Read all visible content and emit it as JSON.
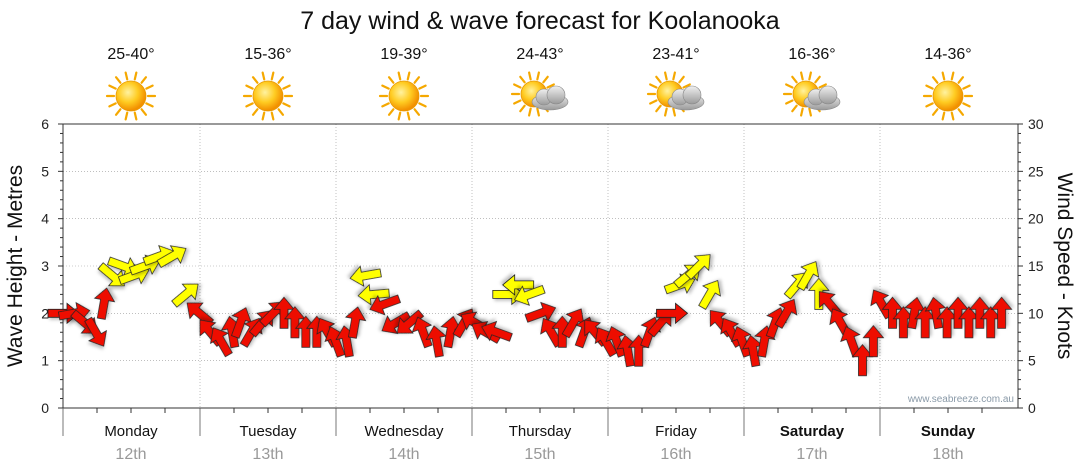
{
  "chart_data": {
    "type": "scatter",
    "title": "7 day wind & wave forecast for Koolanooka",
    "y_left_label": "Wave Height - Metres",
    "y_right_label": "Wind Speed - Knots",
    "y_left_range": [
      0,
      6
    ],
    "y_right_range": [
      0,
      30
    ],
    "y_left_ticks": [
      "0",
      "1",
      "2",
      "3",
      "4",
      "5",
      "6"
    ],
    "y_right_ticks": [
      "0",
      "5",
      "10",
      "15",
      "20",
      "25",
      "30"
    ],
    "credit": "www.seabreeze.com.au",
    "colors": {
      "strong_wind": "#ee1100",
      "light_wind": "#ffff00",
      "arrow_outline": "#222222",
      "grid": "#999999"
    },
    "days": [
      {
        "name": "Monday",
        "date": "12th",
        "temp": "25-40°",
        "icon": "sun-icon",
        "bold": false
      },
      {
        "name": "Tuesday",
        "date": "13th",
        "temp": "15-36°",
        "icon": "sun-icon",
        "bold": false
      },
      {
        "name": "Wednesday",
        "date": "14th",
        "temp": "19-39°",
        "icon": "sun-icon",
        "bold": false
      },
      {
        "name": "Thursday",
        "date": "15th",
        "temp": "24-43°",
        "icon": "sun-cloud-icon",
        "bold": false
      },
      {
        "name": "Friday",
        "date": "16th",
        "temp": "23-41°",
        "icon": "sun-cloud-icon",
        "bold": false
      },
      {
        "name": "Saturday",
        "date": "17th",
        "temp": "16-36°",
        "icon": "sun-cloud-icon",
        "bold": true
      },
      {
        "name": "Sunday",
        "date": "18th",
        "temp": "14-36°",
        "icon": "sun-icon",
        "bold": true
      }
    ],
    "series": [
      {
        "name": "Wind",
        "points": [
          {
            "t": 0.0,
            "knots": 10,
            "dir": 0
          },
          {
            "t": 0.08,
            "knots": 10,
            "dir": -10
          },
          {
            "t": 0.16,
            "knots": 9,
            "dir": 40
          },
          {
            "t": 0.24,
            "knots": 8,
            "dir": 60
          },
          {
            "t": 0.3,
            "knots": 11,
            "dir": -80
          },
          {
            "t": 0.36,
            "knots": 14,
            "dir": 40
          },
          {
            "t": 0.44,
            "knots": 15,
            "dir": 20
          },
          {
            "t": 0.52,
            "knots": 14,
            "dir": -20
          },
          {
            "t": 0.6,
            "knots": 15,
            "dir": -20
          },
          {
            "t": 0.7,
            "knots": 16,
            "dir": -20
          },
          {
            "t": 0.8,
            "knots": 16,
            "dir": -30
          },
          {
            "t": 0.9,
            "knots": 12,
            "dir": -40
          },
          {
            "t": 1.0,
            "knots": 10,
            "dir": -140
          },
          {
            "t": 1.08,
            "knots": 8,
            "dir": -130
          },
          {
            "t": 1.16,
            "knots": 7,
            "dir": -120
          },
          {
            "t": 1.24,
            "knots": 8,
            "dir": -100
          },
          {
            "t": 1.3,
            "knots": 9,
            "dir": -70
          },
          {
            "t": 1.38,
            "knots": 8,
            "dir": -60
          },
          {
            "t": 1.46,
            "knots": 9,
            "dir": -50
          },
          {
            "t": 1.54,
            "knots": 10,
            "dir": -45
          },
          {
            "t": 1.62,
            "knots": 10,
            "dir": -90
          },
          {
            "t": 1.7,
            "knots": 9,
            "dir": -90
          },
          {
            "t": 1.78,
            "knots": 8,
            "dir": -90
          },
          {
            "t": 1.86,
            "knots": 8,
            "dir": -90
          },
          {
            "t": 1.94,
            "knots": 8,
            "dir": -120
          },
          {
            "t": 2.0,
            "knots": 7,
            "dir": -110
          },
          {
            "t": 2.08,
            "knots": 7,
            "dir": -100
          },
          {
            "t": 2.14,
            "knots": 9,
            "dir": -80
          },
          {
            "t": 2.22,
            "knots": 14,
            "dir": 170
          },
          {
            "t": 2.28,
            "knots": 12,
            "dir": 175
          },
          {
            "t": 2.36,
            "knots": 11,
            "dir": 160
          },
          {
            "t": 2.44,
            "knots": 9,
            "dir": 150
          },
          {
            "t": 2.54,
            "knots": 9,
            "dir": 140
          },
          {
            "t": 2.64,
            "knots": 8,
            "dir": -110
          },
          {
            "t": 2.74,
            "knots": 7,
            "dir": -100
          },
          {
            "t": 2.84,
            "knots": 8,
            "dir": -80
          },
          {
            "t": 2.94,
            "knots": 9,
            "dir": -60
          },
          {
            "t": 3.02,
            "knots": 9,
            "dir": -150
          },
          {
            "t": 3.1,
            "knots": 8,
            "dir": -150
          },
          {
            "t": 3.18,
            "knots": 8,
            "dir": -160
          },
          {
            "t": 3.26,
            "knots": 12,
            "dir": 0
          },
          {
            "t": 3.34,
            "knots": 13,
            "dir": 180
          },
          {
            "t": 3.42,
            "knots": 12,
            "dir": 160
          },
          {
            "t": 3.5,
            "knots": 10,
            "dir": -20
          },
          {
            "t": 3.58,
            "knots": 8,
            "dir": -120
          },
          {
            "t": 3.66,
            "knots": 8,
            "dir": -90
          },
          {
            "t": 3.74,
            "knots": 9,
            "dir": -60
          },
          {
            "t": 3.82,
            "knots": 8,
            "dir": -70
          },
          {
            "t": 3.9,
            "knots": 8,
            "dir": -130
          },
          {
            "t": 3.98,
            "knots": 7,
            "dir": -120
          },
          {
            "t": 4.06,
            "knots": 7,
            "dir": -110
          },
          {
            "t": 4.14,
            "knots": 6,
            "dir": -100
          },
          {
            "t": 4.22,
            "knots": 6,
            "dir": -90
          },
          {
            "t": 4.3,
            "knots": 8,
            "dir": -70
          },
          {
            "t": 4.38,
            "knots": 9,
            "dir": -50
          },
          {
            "t": 4.46,
            "knots": 10,
            "dir": 0
          },
          {
            "t": 4.52,
            "knots": 13,
            "dir": -20
          },
          {
            "t": 4.58,
            "knots": 14,
            "dir": -40
          },
          {
            "t": 4.66,
            "knots": 15,
            "dir": -45
          },
          {
            "t": 4.74,
            "knots": 12,
            "dir": -60
          },
          {
            "t": 4.82,
            "knots": 9,
            "dir": -130
          },
          {
            "t": 4.9,
            "knots": 8,
            "dir": -120
          },
          {
            "t": 4.98,
            "knots": 7,
            "dir": -110
          },
          {
            "t": 5.06,
            "knots": 6,
            "dir": -100
          },
          {
            "t": 5.14,
            "knots": 7,
            "dir": -80
          },
          {
            "t": 5.22,
            "knots": 9,
            "dir": -70
          },
          {
            "t": 5.3,
            "knots": 10,
            "dir": -60
          },
          {
            "t": 5.38,
            "knots": 13,
            "dir": -50
          },
          {
            "t": 5.46,
            "knots": 14,
            "dir": -60
          },
          {
            "t": 5.54,
            "knots": 12,
            "dir": -90
          },
          {
            "t": 5.62,
            "knots": 11,
            "dir": -130
          },
          {
            "t": 5.7,
            "knots": 9,
            "dir": -120
          },
          {
            "t": 5.78,
            "knots": 7,
            "dir": -110
          },
          {
            "t": 5.86,
            "knots": 5,
            "dir": -90
          },
          {
            "t": 5.94,
            "knots": 7,
            "dir": -90
          },
          {
            "t": 6.0,
            "knots": 11,
            "dir": -120
          },
          {
            "t": 6.08,
            "knots": 10,
            "dir": -90
          },
          {
            "t": 6.16,
            "knots": 9,
            "dir": -90
          },
          {
            "t": 6.24,
            "knots": 10,
            "dir": -80
          },
          {
            "t": 6.32,
            "knots": 9,
            "dir": -90
          },
          {
            "t": 6.4,
            "knots": 10,
            "dir": -100
          },
          {
            "t": 6.48,
            "knots": 9,
            "dir": -90
          },
          {
            "t": 6.56,
            "knots": 10,
            "dir": -90
          },
          {
            "t": 6.64,
            "knots": 9,
            "dir": -90
          },
          {
            "t": 6.72,
            "knots": 10,
            "dir": -90
          },
          {
            "t": 6.8,
            "knots": 9,
            "dir": -90
          },
          {
            "t": 6.88,
            "knots": 10,
            "dir": -90
          }
        ]
      }
    ]
  }
}
